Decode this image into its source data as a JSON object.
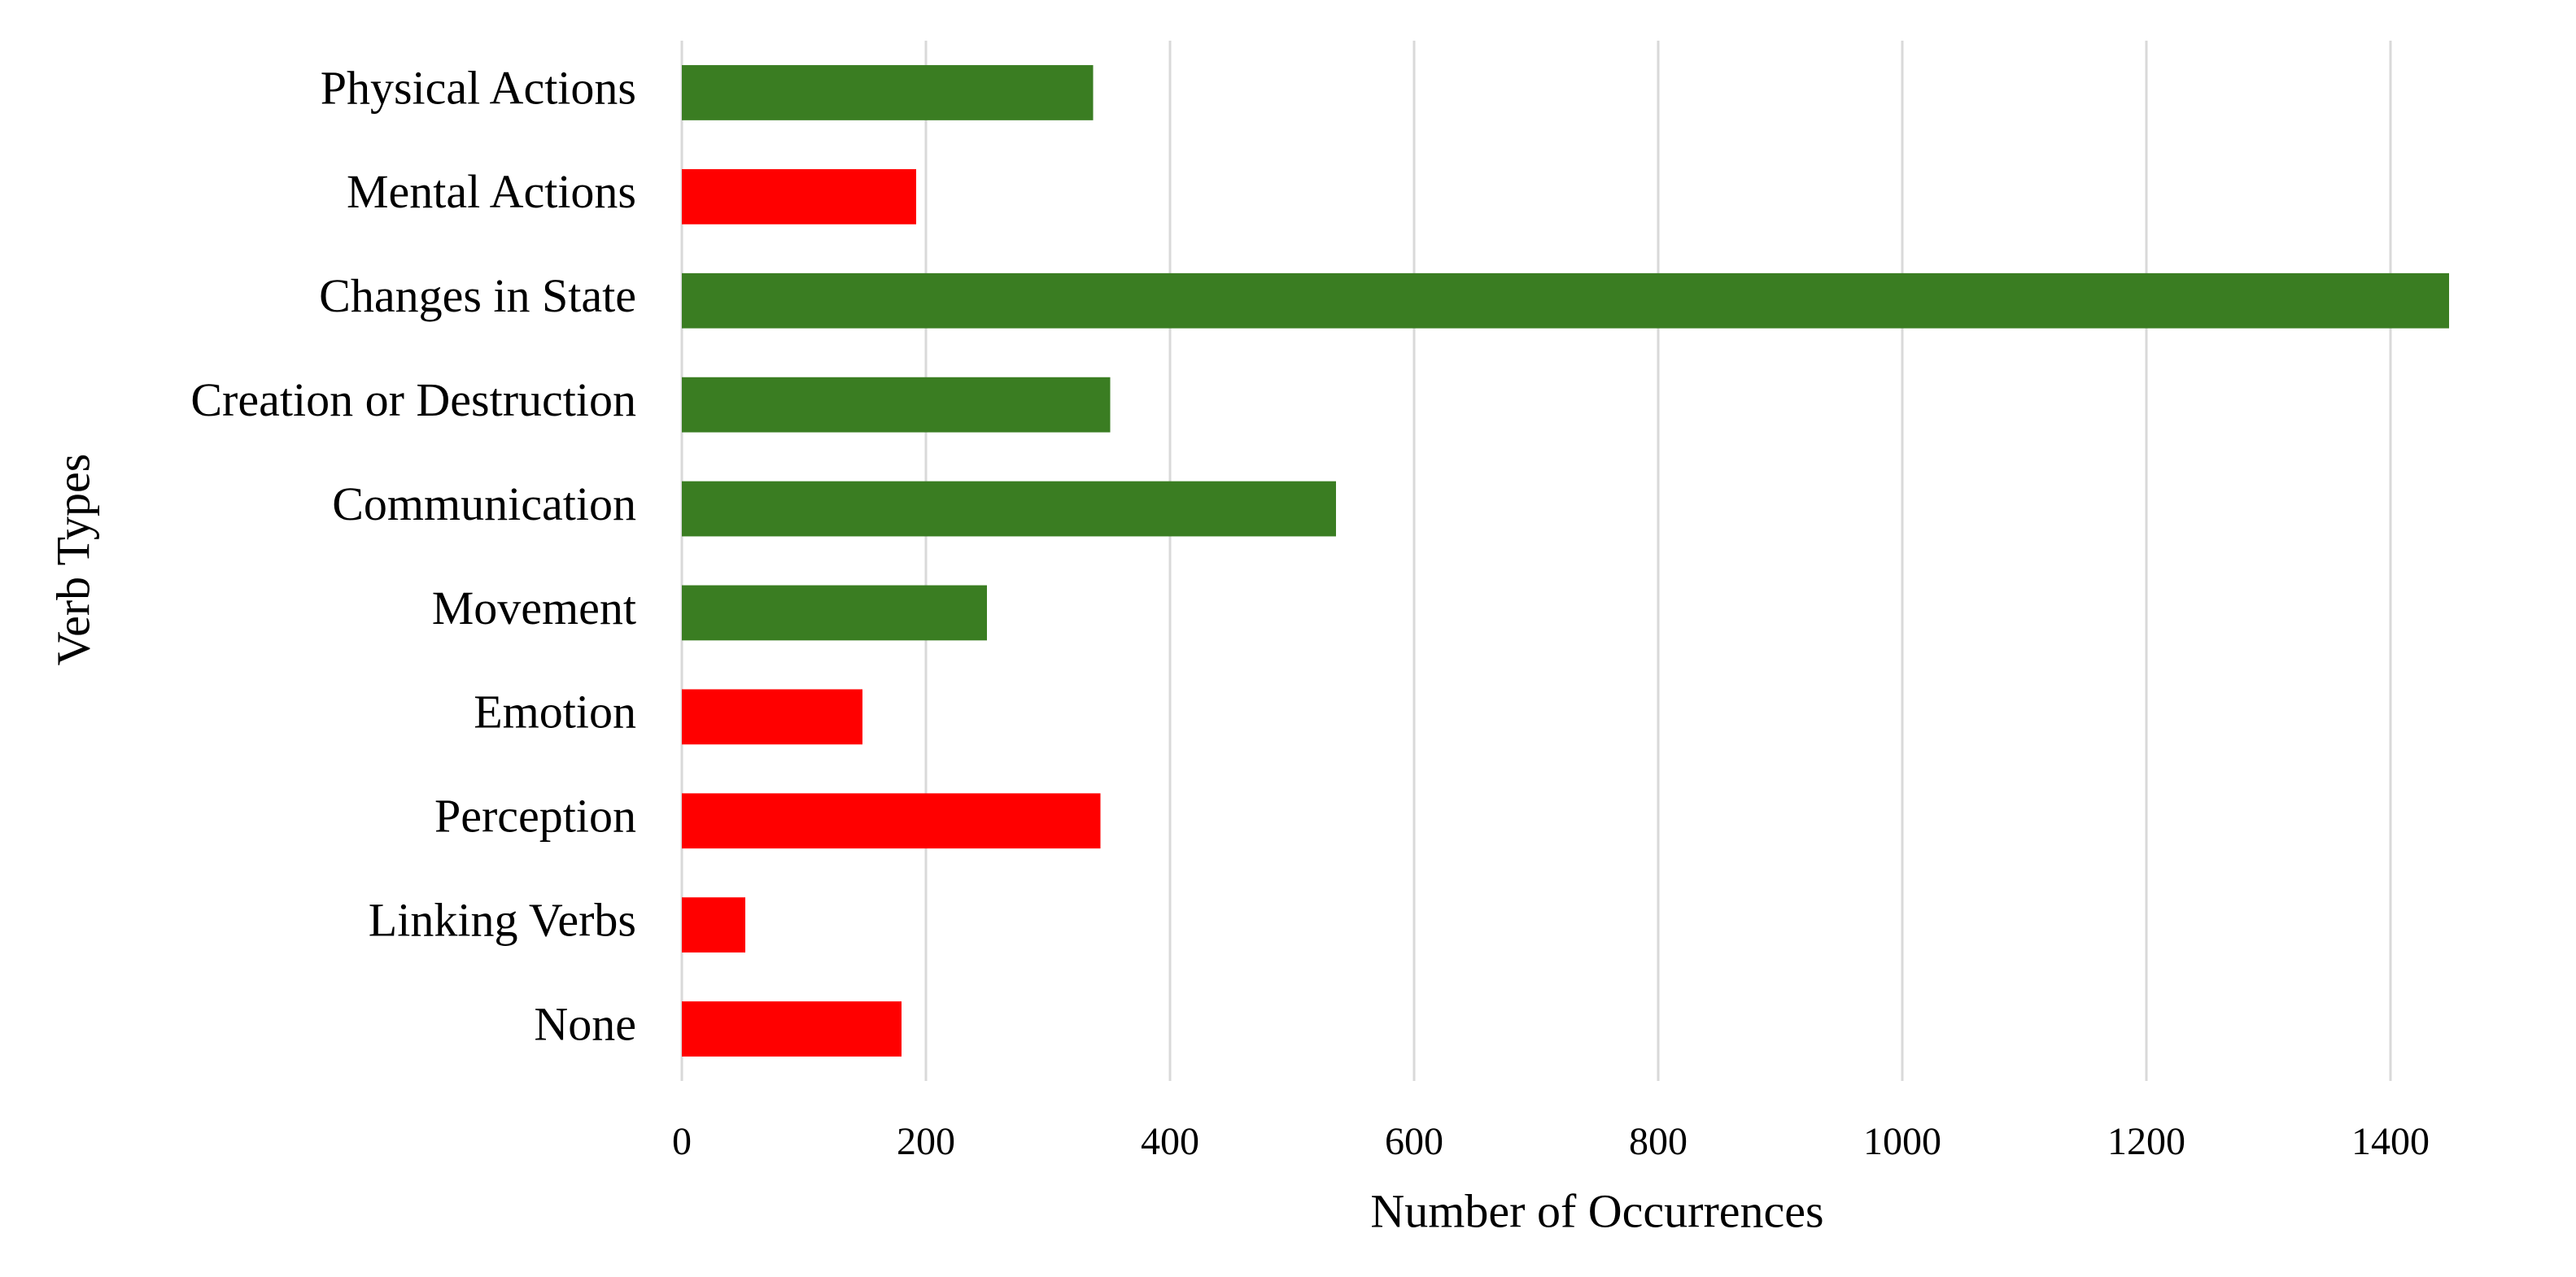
{
  "chart_data": {
    "type": "hbar",
    "x_label": "Number of Occurrences",
    "y_label": "Verb Types",
    "categories": [
      "Physical Actions",
      "Mental Actions",
      "Changes in State",
      "Creation or Destruction",
      "Communication",
      "Movement",
      "Emotion",
      "Perception",
      "Linking Verbs",
      "None"
    ],
    "values": [
      337,
      192,
      1448,
      351,
      536,
      250,
      148,
      343,
      52,
      180
    ],
    "colors": [
      "#3a7d22",
      "#ff0000",
      "#3a7d22",
      "#3a7d22",
      "#3a7d22",
      "#3a7d22",
      "#ff0000",
      "#ff0000",
      "#ff0000",
      "#ff0000"
    ],
    "xlim": [
      0,
      1500
    ],
    "xticks": [
      0,
      200,
      400,
      600,
      800,
      1000,
      1200,
      1400
    ],
    "grid": true
  }
}
